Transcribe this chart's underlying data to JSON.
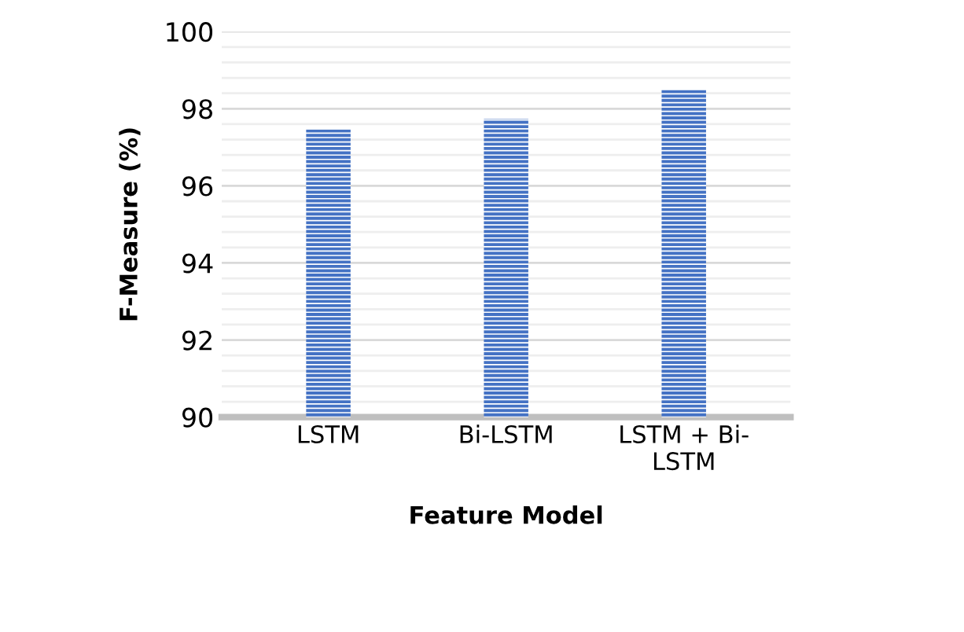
{
  "chart_data": {
    "type": "bar",
    "categories": [
      "LSTM",
      "Bi-LSTM",
      "LSTM + Bi-\nLSTM"
    ],
    "values": [
      97.46,
      97.73,
      98.51
    ],
    "color": "#4472c4",
    "xlabel": "Feature Model",
    "ylabel": "F-Measure (%)",
    "ylim": [
      90,
      100
    ],
    "yticks": [
      90,
      {
        "value": 90.4,
        "label": null
      },
      {
        "value": 90.8,
        "label": null
      },
      {
        "value": 91.2,
        "label": null
      },
      {
        "value": 91.6,
        "label": null
      },
      92,
      {
        "value": 92.4,
        "label": null
      },
      {
        "value": 92.8,
        "label": null
      },
      {
        "value": 93.2,
        "label": null
      },
      {
        "value": 93.6,
        "label": null
      },
      94,
      {
        "value": 94.4,
        "label": null
      },
      {
        "value": 94.8,
        "label": null
      },
      {
        "value": 95.2,
        "label": null
      },
      {
        "value": 95.6,
        "label": null
      },
      96,
      {
        "value": 96.4,
        "label": null
      },
      {
        "value": 96.8,
        "label": null
      },
      {
        "value": 97.2,
        "label": null
      },
      {
        "value": 97.6,
        "label": null
      },
      98,
      {
        "value": 98.4,
        "label": null
      },
      {
        "value": 98.8,
        "label": null
      },
      {
        "value": 99.2,
        "label": null
      },
      {
        "value": 99.6,
        "label": null
      },
      100
    ],
    "grid": "y"
  }
}
